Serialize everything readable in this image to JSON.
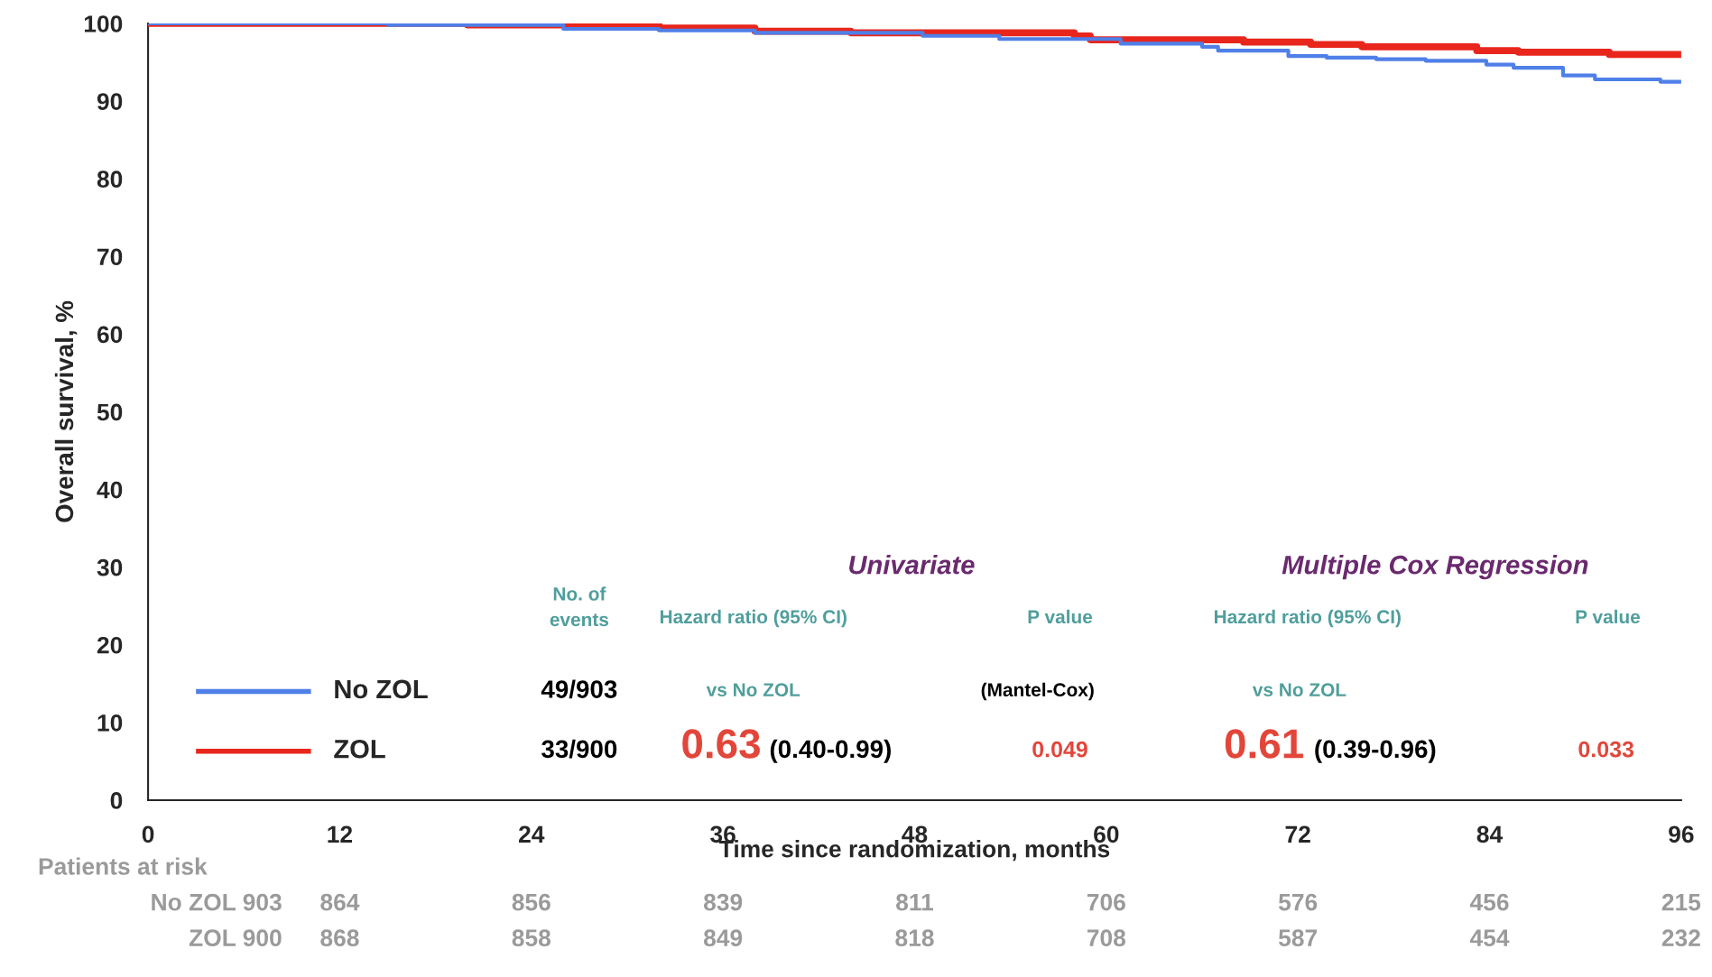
{
  "chart_data": {
    "type": "step",
    "xlabel": "Time since randomization, months",
    "ylabel": "Overall survival, %",
    "xlim": [
      0,
      96
    ],
    "ylim": [
      0,
      100
    ],
    "xticks": [
      0,
      12,
      24,
      36,
      48,
      60,
      72,
      84,
      96
    ],
    "yticks": [
      0,
      10,
      20,
      30,
      40,
      50,
      60,
      70,
      80,
      90,
      100
    ],
    "grid": false,
    "legend": "bottom left",
    "series": [
      {
        "name": "No ZOL",
        "color": "#4f7fe8",
        "x": [
          0,
          15,
          26,
          32,
          38,
          48.5,
          53.3,
          60.9,
          66,
          67,
          71.4,
          73.8,
          76.9,
          80,
          83.8,
          85.5,
          88.6,
          90.6,
          94.7,
          96
        ],
        "values": [
          100,
          99.8,
          99.3,
          99.1,
          98.8,
          98.4,
          98.0,
          97.4,
          97.0,
          96.5,
          95.8,
          95.6,
          95.4,
          95.2,
          94.7,
          94.3,
          93.3,
          92.8,
          92.5,
          92.5
        ]
      },
      {
        "name": "ZOL",
        "color": "#e8261c",
        "x": [
          0,
          20,
          32,
          38,
          44,
          58,
          59,
          68.6,
          72.8,
          76,
          83.2,
          85.8,
          91.5,
          96
        ],
        "values": [
          100,
          99.8,
          99.4,
          99.0,
          98.8,
          98.4,
          97.9,
          97.6,
          97.3,
          97.0,
          96.5,
          96.3,
          96.0,
          96.0
        ]
      }
    ],
    "annotations": [
      "No. of\nevents",
      "Univariate",
      "Hazard ratio (95% CI)",
      "P value",
      "vs No ZOL",
      "(Mantel-Cox)",
      "Multiple Cox Regression",
      "Hazard ratio (95% CI)",
      "P value",
      "vs No ZOL",
      "49/903",
      "33/900",
      "0.63",
      "(0.40-0.99)",
      "0.049",
      "0.61",
      "(0.39-0.96)",
      "0.033",
      "Patients at risk",
      "No ZOL 903",
      "ZOL 900",
      "864",
      "856",
      "839",
      "811",
      "706",
      "576",
      "456",
      "215",
      "868",
      "858",
      "849",
      "818",
      "708",
      "587",
      "454",
      "232"
    ]
  }
}
